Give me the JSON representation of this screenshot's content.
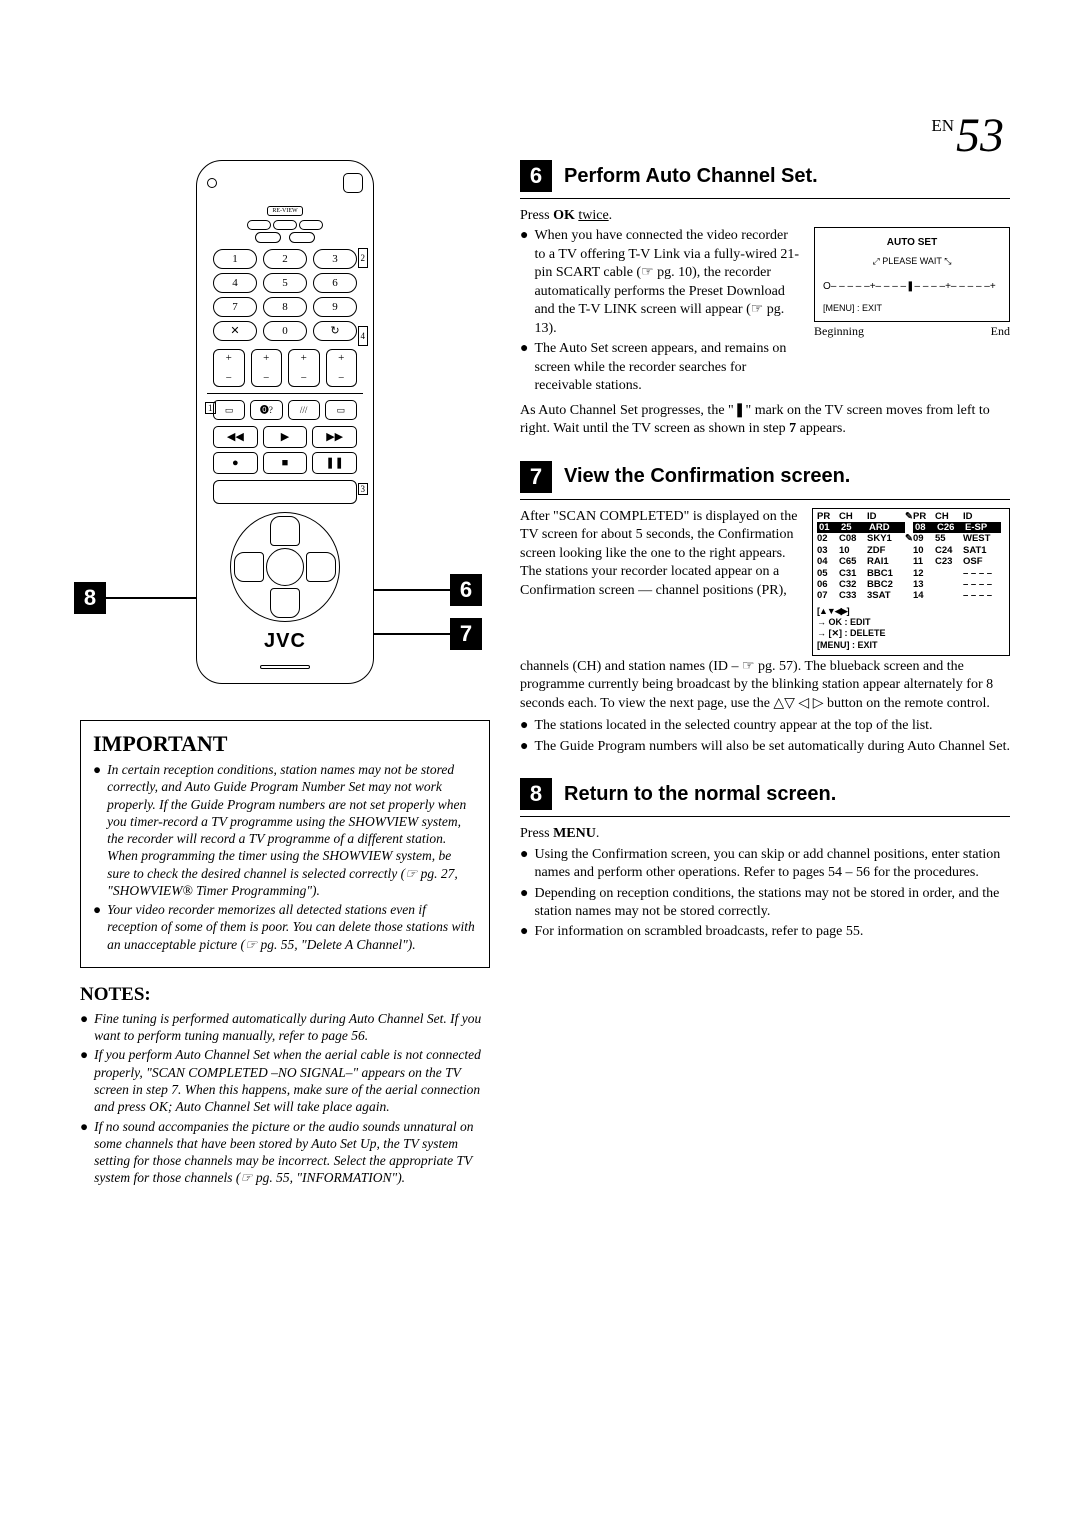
{
  "page_number": {
    "prefix": "EN",
    "num": "53"
  },
  "remote": {
    "review_label": "RE-VIEW",
    "numbers": [
      "1",
      "2",
      "3",
      "4",
      "5",
      "6",
      "7",
      "8",
      "9",
      "✕",
      "0",
      "↻"
    ],
    "brand": "JVC",
    "marker_left": "8",
    "marker_top_right": "6",
    "marker_bottom_right": "7",
    "idx_small_2": "2",
    "idx_small_4": "4",
    "idx_small_1": "1",
    "idx_small_3": "3"
  },
  "important": {
    "heading": "IMPORTANT",
    "items": [
      "In certain reception conditions, station names may not be stored correctly, and Auto Guide Program Number Set may not work properly. If the Guide Program numbers are not set properly when you timer-record a TV programme using the SHOWVIEW system, the recorder will record a TV programme of a different station. When programming the timer using the SHOWVIEW system, be sure to check the desired channel is selected correctly (☞ pg. 27, \"SHOWVIEW® Timer Programming\").",
      "Your video recorder memorizes all detected stations even if reception of some of them is poor. You can delete those stations with an unacceptable picture (☞ pg. 55, \"Delete A Channel\")."
    ]
  },
  "notes": {
    "heading": "NOTES:",
    "items": [
      "Fine tuning is performed automatically during Auto Channel Set. If you want to perform tuning manually, refer to page 56.",
      "If you perform Auto Channel Set when the aerial cable is not connected properly, \"SCAN COMPLETED –NO SIGNAL–\" appears on the TV screen in step 7. When this happens, make sure of the aerial connection and press OK; Auto Channel Set will take place again.",
      "If no sound accompanies the picture or the audio sounds unnatural on some channels that have been stored by Auto Set Up, the TV system setting for those channels may be incorrect. Select the appropriate TV system for those channels (☞ pg. 55, \"INFORMATION\")."
    ]
  },
  "step6": {
    "num": "6",
    "title": "Perform Auto Channel Set.",
    "press_html": "Press <b>OK</b> <span class='ul'>twice</span>.",
    "bullets": [
      "When you have connected the video recorder to a TV offering T-V Link via a fully-wired 21-pin SCART cable (☞ pg. 10), the recorder automatically performs the Preset Download and the T-V LINK screen will appear (☞ pg. 13).",
      "The Auto Set screen appears, and remains on screen while the recorder searches for receivable stations."
    ],
    "after": "As Auto Channel Set progresses, the \"❚\" mark on the TV screen moves from left to right. Wait until the TV screen as shown in step 7 appears.",
    "tv": {
      "title": "AUTO SET",
      "wait": "PLEASE WAIT",
      "progress": "O– – – – –+– – – –❚– – – –+– – – – –+",
      "menu": "[MENU] : EXIT",
      "beg": "Beginning",
      "end": "End"
    }
  },
  "step7": {
    "num": "7",
    "title": "View the Confirmation screen.",
    "lead": "After \"SCAN COMPLETED\" is displayed on the TV screen for about 5 seconds, the Confirmation screen looking like the one to the right appears. The stations your recorder located appear on a Confirmation screen — channel positions (PR),",
    "after": "channels (CH) and station names (ID – ☞ pg. 57). The blueback screen and the programme currently being broadcast by the blinking station appear alternately for 8 seconds each. To view the next page, use the △▽ ◁ ▷ button on the remote control.",
    "bullets": [
      "The stations located in the selected country appear at the top of the list.",
      "The Guide Program numbers will also be set automatically during Auto Channel Set."
    ],
    "table": {
      "headers1": [
        "PR",
        "CH",
        "ID"
      ],
      "headers2": [
        "PR",
        "CH",
        "ID"
      ],
      "rows_l": [
        [
          "01",
          "25",
          "ARD"
        ],
        [
          "02",
          "C08",
          "SKY1"
        ],
        [
          "03",
          "10",
          "ZDF"
        ],
        [
          "04",
          "C65",
          "RAI1"
        ],
        [
          "05",
          "C31",
          "BBC1"
        ],
        [
          "06",
          "C32",
          "BBC2"
        ],
        [
          "07",
          "C33",
          "3SAT"
        ]
      ],
      "rows_r": [
        [
          "08",
          "C26",
          "E-SP"
        ],
        [
          "09",
          "55",
          "WEST"
        ],
        [
          "10",
          "C24",
          "SAT1"
        ],
        [
          "11",
          "C23",
          "OSF"
        ],
        [
          "12",
          "",
          "– – – –"
        ],
        [
          "13",
          "",
          "– – – –"
        ],
        [
          "14",
          "",
          "– – – –"
        ]
      ],
      "footer": [
        "[▲▼◀▶]",
        "→ OK  : EDIT",
        "→ [✕] : DELETE",
        "[MENU] : EXIT"
      ]
    }
  },
  "step8": {
    "num": "8",
    "title": "Return to the normal screen.",
    "press_html": "Press <b>MENU</b>.",
    "bullets": [
      "Using the Confirmation screen, you can skip or add channel positions, enter station names and perform other operations. Refer to pages 54 – 56 for the procedures.",
      "Depending on reception conditions, the stations may not be stored in order, and the station names may not be stored correctly.",
      "For information on scrambled broadcasts, refer to page 55."
    ]
  }
}
